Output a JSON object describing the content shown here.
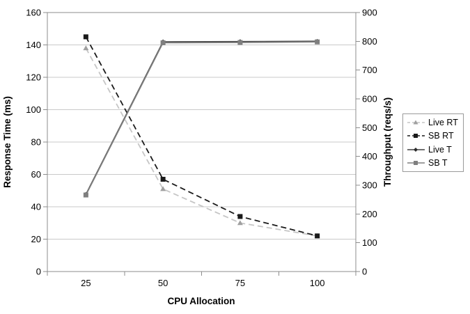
{
  "chart_data": {
    "type": "line",
    "title": "",
    "xlabel": "CPU Allocation",
    "ylabel_left": "Response Time (ms)",
    "ylabel_right": "Throughput (reqs/s)",
    "categories": [
      25,
      50,
      75,
      100
    ],
    "x_tick_labels": [
      "25",
      "50",
      "75",
      "100"
    ],
    "y_left": {
      "min": 0,
      "max": 160,
      "step": 20,
      "tick_labels": [
        "0",
        "20",
        "40",
        "60",
        "80",
        "100",
        "120",
        "140",
        "160"
      ]
    },
    "y_right": {
      "min": 0,
      "max": 900,
      "step": 100,
      "tick_labels": [
        "0",
        "100",
        "200",
        "300",
        "400",
        "500",
        "600",
        "700",
        "800",
        "900"
      ]
    },
    "grid": "horizontal gridlines at left-axis steps",
    "legend_position": "right",
    "series": [
      {
        "name": "Live RT",
        "axis": "left",
        "marker": "triangle",
        "line_style": "dashed",
        "color": "#c6c6c6",
        "marker_color": "#a0a0a0",
        "values": [
          138,
          51,
          30,
          22
        ]
      },
      {
        "name": "SB RT",
        "axis": "left",
        "marker": "square",
        "line_style": "dashed",
        "color": "#1a1a1a",
        "marker_color": "#1a1a1a",
        "values": [
          145,
          57,
          34,
          22
        ]
      },
      {
        "name": "Live T",
        "axis": "right",
        "marker": "diamond",
        "line_style": "solid",
        "color": "#404040",
        "marker_color": "#2b2b2b",
        "values": [
          268,
          798,
          799,
          800
        ]
      },
      {
        "name": "SB T",
        "axis": "right",
        "marker": "square",
        "line_style": "solid",
        "color": "#7f7f7f",
        "marker_color": "#7f7f7f",
        "values": [
          266,
          795,
          796,
          798
        ]
      }
    ],
    "colors": {
      "gridline": "#c9c9c9",
      "axis": "#8c8c8c",
      "background": "#ffffff"
    }
  }
}
